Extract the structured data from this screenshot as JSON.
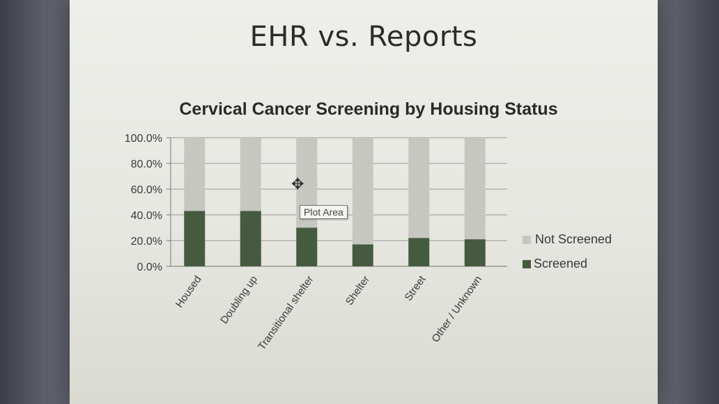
{
  "slide": {
    "title": "EHR vs. Reports"
  },
  "tooltip": {
    "label": "Plot Area"
  },
  "chart_data": {
    "type": "bar",
    "stacked": true,
    "title": "Cervical Cancer Screening by Housing Status",
    "categories": [
      "Housed",
      "Doubling up",
      "Transitional shelter",
      "Shelter",
      "Street",
      "Other / Unknown"
    ],
    "series": [
      {
        "name": "Screened",
        "values": [
          43,
          43,
          30,
          17,
          22,
          21
        ],
        "color": "#465a40"
      },
      {
        "name": "Not Screened",
        "values": [
          57,
          57,
          70,
          83,
          78,
          79
        ],
        "color": "#c9cac4"
      }
    ],
    "y_ticks": [
      "0.0%",
      "20.0%",
      "40.0%",
      "60.0%",
      "80.0%",
      "100.0%"
    ],
    "ylim": [
      0,
      100
    ],
    "grid": true,
    "legend_position": "right"
  }
}
